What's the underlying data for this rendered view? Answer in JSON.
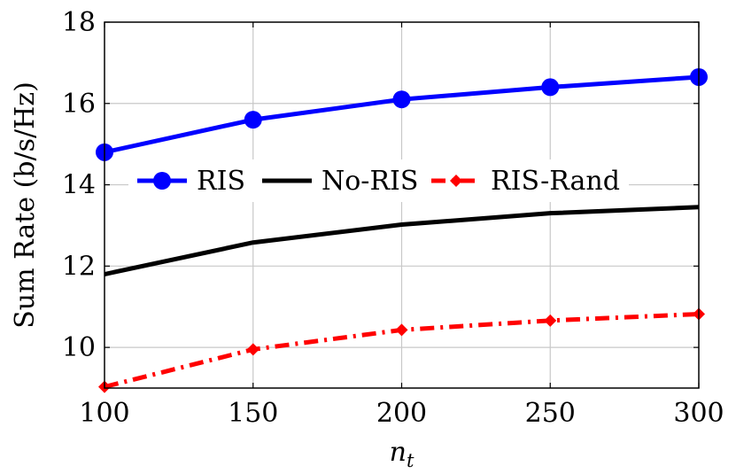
{
  "chart_data": {
    "type": "line",
    "xlabel": "n",
    "xlabel_sub": "t",
    "ylabel": "Sum Rate (b/s/Hz)",
    "xlim": [
      100,
      300
    ],
    "ylim": [
      9,
      18
    ],
    "xticks": [
      100,
      150,
      200,
      250,
      300
    ],
    "yticks": [
      10,
      12,
      14,
      16,
      18
    ],
    "grid": true,
    "legend_position": "center",
    "x": [
      100,
      150,
      200,
      250,
      300
    ],
    "series": [
      {
        "name": "RIS",
        "values": [
          14.8,
          15.6,
          16.1,
          16.4,
          16.65
        ],
        "color": "#0000ff",
        "marker": "circle",
        "dash": "solid"
      },
      {
        "name": "No-RIS",
        "values": [
          11.8,
          12.58,
          13.02,
          13.3,
          13.45
        ],
        "color": "#000000",
        "marker": "none",
        "dash": "solid"
      },
      {
        "name": "RIS-Rand",
        "values": [
          9.03,
          9.95,
          10.43,
          10.66,
          10.82
        ],
        "color": "#ff0000",
        "marker": "diamond",
        "dash": "dashdot"
      }
    ]
  }
}
